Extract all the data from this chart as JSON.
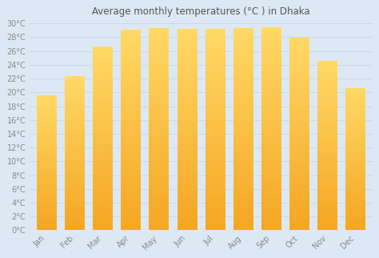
{
  "title": "Average monthly temperatures (°C ) in Dhaka",
  "months": [
    "Jan",
    "Feb",
    "Mar",
    "Apr",
    "May",
    "Jun",
    "Jul",
    "Aug",
    "Sep",
    "Oct",
    "Nov",
    "Dec"
  ],
  "values": [
    19.5,
    22.2,
    26.5,
    29.0,
    29.2,
    29.1,
    29.1,
    29.2,
    29.3,
    27.8,
    24.5,
    20.5
  ],
  "bar_color_bottom": "#F5A623",
  "bar_color_top": "#FFD966",
  "ylim": [
    0,
    30
  ],
  "ytick_step": 2,
  "background_color": "#dce9f5",
  "grid_color": "#c8d8e8",
  "title_fontsize": 8.5,
  "tick_fontsize": 7,
  "tick_color": "#888888",
  "bar_width": 0.7,
  "title_color": "#555555"
}
